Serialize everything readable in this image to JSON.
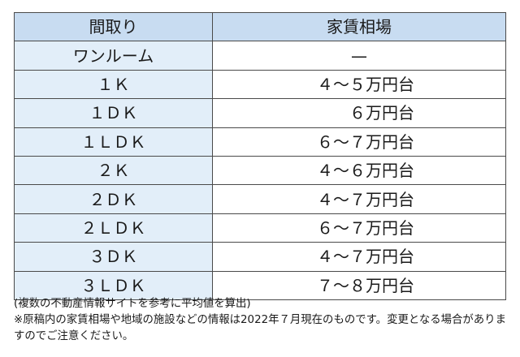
{
  "table": {
    "headers": [
      "間取り",
      "家賃相場"
    ],
    "rows": [
      {
        "layout": "ワンルーム",
        "rent": "—"
      },
      {
        "layout": "１Ｋ",
        "rent": "４～５万円台"
      },
      {
        "layout": "１ＤＫ",
        "rent": "６万円台"
      },
      {
        "layout": "１ＬＤＫ",
        "rent": "６～７万円台"
      },
      {
        "layout": "２Ｋ",
        "rent": "４～６万円台"
      },
      {
        "layout": "２ＤＫ",
        "rent": "４～７万円台"
      },
      {
        "layout": "２ＬＤＫ",
        "rent": "６～７万円台"
      },
      {
        "layout": "３ＤＫ",
        "rent": "４～７万円台"
      },
      {
        "layout": "３ＬＤＫ",
        "rent": "７～８万円台"
      }
    ]
  },
  "notes": {
    "calc_note": "(複数の不動産情報サイトを参考に平均値を算出)",
    "disclaimer": "※原稿内の家賃相場や地域の施設などの情報は2022年７月現在のものです。変更となる場合がありますのでご注意ください。"
  },
  "colors": {
    "header_bg": "#c8dcf1",
    "layout_col_bg": "#e2eef9",
    "border": "#4a4a4a"
  }
}
